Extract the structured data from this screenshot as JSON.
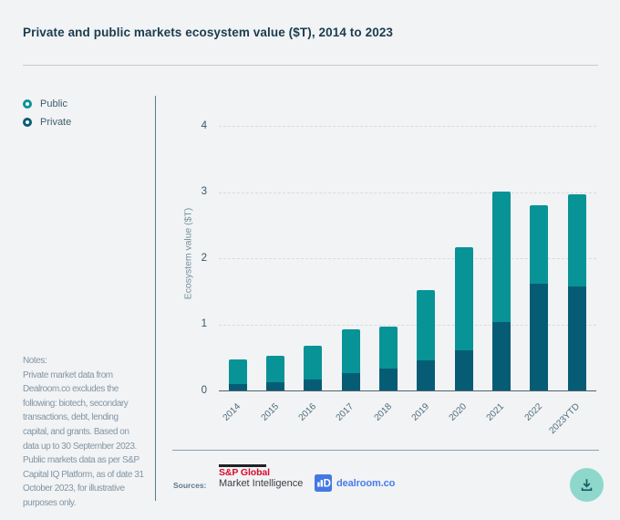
{
  "header": {
    "title": "Private and public markets ecosystem value ($T), 2014 to 2023"
  },
  "legend": {
    "items": [
      {
        "label": "Public",
        "color": "#089397"
      },
      {
        "label": "Private",
        "color": "#075c75"
      }
    ]
  },
  "notes": {
    "lines": [
      "Notes:",
      "Private market data from",
      "Dealroom.co excludes the",
      "following: biotech, secondary",
      "transactions, debt, lending",
      "capital, and grants. Based on",
      "data up to 30 September 2023.",
      "Public markets data as per S&P",
      "Capital IQ Platform, as of date 31",
      "October 2023, for illustrative",
      "purposes only."
    ]
  },
  "chart_data": {
    "type": "bar",
    "stacked": true,
    "title": "Private and public markets ecosystem value ($T), 2014 to 2023",
    "categories": [
      "2014",
      "2015",
      "2016",
      "2017",
      "2018",
      "2019",
      "2020",
      "2021",
      "2022",
      "2023YTD"
    ],
    "series": [
      {
        "name": "Private",
        "color": "#075c75",
        "values": [
          0.09,
          0.12,
          0.17,
          0.26,
          0.33,
          0.46,
          0.61,
          1.04,
          1.62,
          1.57
        ]
      },
      {
        "name": "Public",
        "color": "#089397",
        "values": [
          0.38,
          0.41,
          0.5,
          0.67,
          0.64,
          1.06,
          1.56,
          1.97,
          1.19,
          1.4
        ]
      }
    ],
    "totals": [
      0.47,
      0.53,
      0.67,
      0.93,
      0.97,
      1.52,
      2.17,
      3.01,
      2.81,
      2.97
    ],
    "xlabel": "",
    "ylabel": "Ecosystem value ($T)",
    "yticks": [
      0,
      1,
      2,
      3,
      4
    ],
    "ylim": [
      0,
      4.3
    ],
    "grid": "horizontal-dashed",
    "legend_position": "top-left"
  },
  "footer": {
    "sources_label": "Sources:",
    "sp_global": {
      "name": "S&P Global",
      "subtitle": "Market Intelligence",
      "accent": "#da0b2c"
    },
    "dealroom": {
      "text": "dealroom.co",
      "color": "#4a7ce8"
    }
  }
}
